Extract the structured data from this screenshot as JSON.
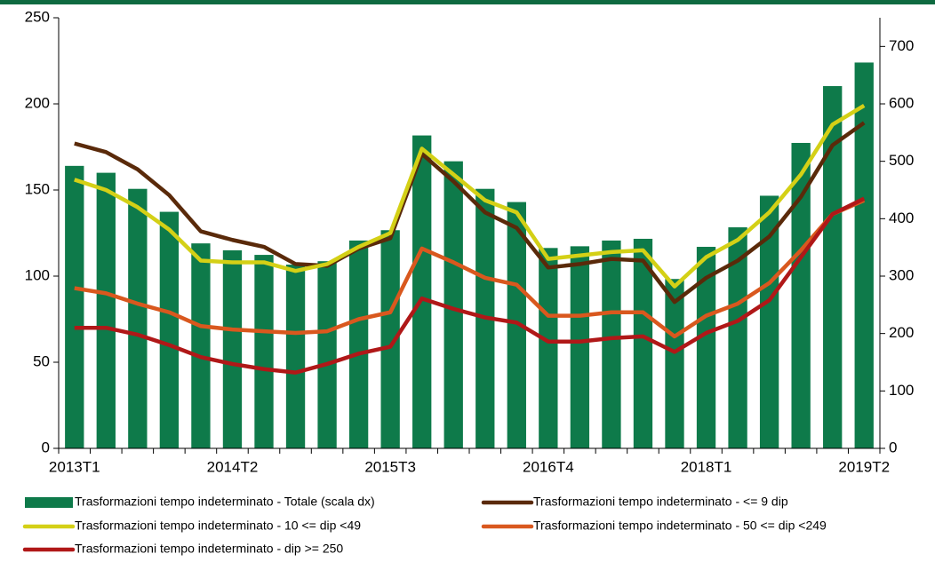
{
  "chart_data": {
    "type": "bar_line",
    "categories": [
      "2013T1",
      null,
      null,
      null,
      null,
      "2014T2",
      null,
      null,
      null,
      null,
      "2015T3",
      null,
      null,
      null,
      null,
      "2016T4",
      null,
      null,
      null,
      null,
      "2018T1",
      null,
      null,
      null,
      null,
      "2019T2"
    ],
    "ylim": [
      0,
      250
    ],
    "yticks": [
      0,
      50,
      100,
      150,
      200,
      250
    ],
    "y2lim": [
      0,
      750
    ],
    "y2ticks": [
      0,
      100,
      200,
      300,
      400,
      500,
      600,
      700
    ],
    "series": [
      {
        "name": "Trasformazioni tempo indeterminato - Totale (scala dx)",
        "type": "bar",
        "axis": "y2",
        "color": "#0e7a4a",
        "values": [
          492,
          480,
          452,
          412,
          357,
          345,
          337,
          320,
          326,
          362,
          380,
          545,
          500,
          452,
          429,
          349,
          352,
          362,
          365,
          295,
          351,
          385,
          440,
          532,
          631,
          672
        ]
      },
      {
        "name": "Trasformazioni tempo indeterminato - <= 9 dip",
        "type": "line",
        "color": "#5a2a0a",
        "values": [
          177,
          172,
          162,
          147,
          126,
          121,
          117,
          107,
          106,
          116,
          122,
          171,
          155,
          137,
          128,
          105,
          107,
          110,
          109,
          85,
          99,
          109,
          123,
          146,
          176,
          189
        ]
      },
      {
        "name": "Trasformazioni tempo indeterminato - 10 <= dip <49",
        "type": "line",
        "color": "#d4d016",
        "values": [
          156,
          150,
          140,
          127,
          109,
          108,
          108,
          103,
          107,
          117,
          125,
          174,
          159,
          144,
          137,
          110,
          112,
          114,
          115,
          94,
          111,
          121,
          137,
          159,
          188,
          199
        ]
      },
      {
        "name": "Trasformazioni tempo indeterminato - 50 <= dip <249",
        "type": "line",
        "color": "#d9581e",
        "values": [
          93,
          90,
          84,
          79,
          71,
          69,
          68,
          67,
          68,
          75,
          79,
          116,
          108,
          99,
          95,
          77,
          77,
          79,
          79,
          65,
          77,
          84,
          96,
          115,
          136,
          144
        ]
      },
      {
        "name": "Trasformazioni tempo indeterminato - dip >= 250",
        "type": "line",
        "color": "#b01818",
        "values": [
          70,
          70,
          66,
          60,
          53,
          49,
          46,
          44,
          49,
          55,
          59,
          87,
          81,
          76,
          73,
          62,
          62,
          64,
          65,
          56,
          67,
          74,
          86,
          111,
          136,
          145
        ]
      }
    ]
  }
}
